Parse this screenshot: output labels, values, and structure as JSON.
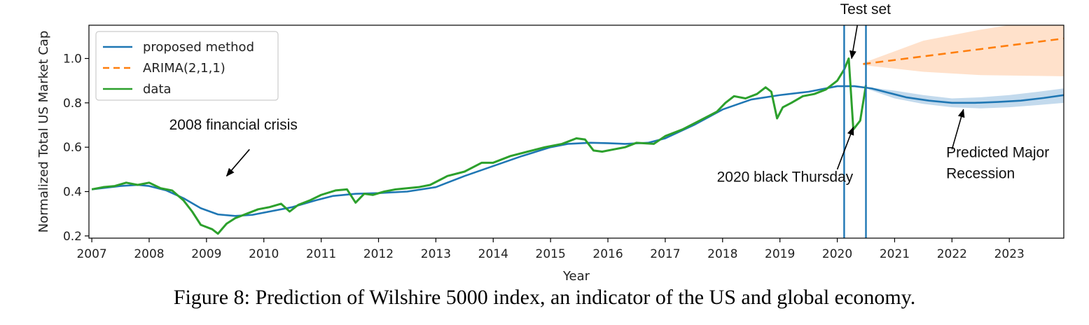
{
  "caption": "Figure 8: Prediction of Wilshire 5000 index, an indicator of the US and global economy.",
  "colors": {
    "proposed": "#1f77b4",
    "arima": "#ff7f0e",
    "data": "#2ca02c",
    "arima_band": "#ffdcc2",
    "proposed_band": "#b8d4ea"
  },
  "chart_data": {
    "type": "line",
    "title": "",
    "xlabel": "Year",
    "ylabel": "Normalized Total US Market Cap",
    "xlim": [
      2006.95,
      2023.95
    ],
    "ylim": [
      0.19,
      1.15
    ],
    "x_ticks": [
      "2007",
      "2008",
      "2009",
      "2010",
      "2011",
      "2012",
      "2013",
      "2014",
      "2015",
      "2016",
      "2017",
      "2018",
      "2019",
      "2020",
      "2021",
      "2022",
      "2023"
    ],
    "y_ticks": [
      "0.2",
      "0.4",
      "0.6",
      "0.8",
      "1.0"
    ],
    "legend_position": "upper-left",
    "test_set_vlines": [
      2020.12,
      2020.5
    ],
    "series": [
      {
        "name": "proposed method",
        "style": "solid",
        "x": [
          2007.0,
          2007.5,
          2007.8,
          2008.0,
          2008.3,
          2008.6,
          2008.9,
          2009.2,
          2009.5,
          2009.8,
          2010.1,
          2010.5,
          2010.9,
          2011.2,
          2011.6,
          2012.0,
          2012.5,
          2013.0,
          2013.5,
          2014.0,
          2014.5,
          2015.0,
          2015.3,
          2015.7,
          2016.0,
          2016.3,
          2016.7,
          2017.0,
          2017.5,
          2018.0,
          2018.5,
          2019.0,
          2019.5,
          2020.0,
          2020.3,
          2020.6,
          2020.9,
          2021.2,
          2021.6,
          2022.0,
          2022.4,
          2022.8,
          2023.2,
          2023.6,
          2023.95
        ],
        "y": [
          0.41,
          0.425,
          0.43,
          0.425,
          0.405,
          0.37,
          0.325,
          0.297,
          0.29,
          0.295,
          0.31,
          0.33,
          0.36,
          0.38,
          0.39,
          0.393,
          0.4,
          0.42,
          0.47,
          0.515,
          0.56,
          0.6,
          0.615,
          0.62,
          0.618,
          0.615,
          0.62,
          0.64,
          0.7,
          0.77,
          0.815,
          0.835,
          0.85,
          0.875,
          0.875,
          0.865,
          0.845,
          0.825,
          0.81,
          0.8,
          0.8,
          0.804,
          0.81,
          0.822,
          0.835
        ]
      },
      {
        "name": "ARIMA(2,1,1)",
        "style": "dashed",
        "x": [
          2020.45,
          2023.95
        ],
        "y": [
          0.975,
          1.09
        ]
      },
      {
        "name": "data",
        "style": "solid",
        "x": [
          2007.0,
          2007.2,
          2007.4,
          2007.6,
          2007.8,
          2008.0,
          2008.2,
          2008.4,
          2008.6,
          2008.75,
          2008.9,
          2009.1,
          2009.2,
          2009.35,
          2009.5,
          2009.7,
          2009.9,
          2010.1,
          2010.3,
          2010.45,
          2010.6,
          2010.8,
          2011.0,
          2011.25,
          2011.45,
          2011.6,
          2011.75,
          2011.9,
          2012.1,
          2012.3,
          2012.5,
          2012.7,
          2012.9,
          2013.2,
          2013.5,
          2013.8,
          2014.0,
          2014.3,
          2014.6,
          2014.9,
          2015.2,
          2015.45,
          2015.6,
          2015.75,
          2015.9,
          2016.1,
          2016.3,
          2016.5,
          2016.8,
          2017.0,
          2017.3,
          2017.6,
          2017.9,
          2018.05,
          2018.2,
          2018.4,
          2018.6,
          2018.75,
          2018.85,
          2018.95,
          2019.05,
          2019.2,
          2019.4,
          2019.6,
          2019.8,
          2020.0,
          2020.12,
          2020.2,
          2020.28,
          2020.4,
          2020.5
        ],
        "y": [
          0.41,
          0.42,
          0.425,
          0.44,
          0.43,
          0.44,
          0.415,
          0.405,
          0.36,
          0.31,
          0.25,
          0.23,
          0.21,
          0.255,
          0.28,
          0.3,
          0.32,
          0.33,
          0.345,
          0.31,
          0.34,
          0.36,
          0.385,
          0.405,
          0.41,
          0.35,
          0.39,
          0.385,
          0.4,
          0.41,
          0.415,
          0.42,
          0.43,
          0.47,
          0.49,
          0.53,
          0.53,
          0.56,
          0.58,
          0.6,
          0.615,
          0.64,
          0.635,
          0.585,
          0.58,
          0.59,
          0.6,
          0.62,
          0.615,
          0.65,
          0.68,
          0.72,
          0.76,
          0.8,
          0.83,
          0.82,
          0.84,
          0.87,
          0.85,
          0.73,
          0.78,
          0.8,
          0.83,
          0.84,
          0.86,
          0.9,
          0.95,
          1.0,
          0.68,
          0.72,
          0.88
        ]
      }
    ],
    "bands": [
      {
        "for": "ARIMA(2,1,1)",
        "x": [
          2020.45,
          2021.5,
          2022.5,
          2023.95
        ],
        "lower": [
          0.97,
          0.94,
          0.925,
          0.92
        ],
        "upper": [
          0.98,
          1.08,
          1.13,
          1.19
        ]
      },
      {
        "for": "proposed method",
        "x": [
          2020.55,
          2021.0,
          2021.5,
          2022.0,
          2022.5,
          2023.0,
          2023.5,
          2023.95
        ],
        "lower": [
          0.86,
          0.82,
          0.795,
          0.78,
          0.775,
          0.78,
          0.79,
          0.8
        ],
        "upper": [
          0.87,
          0.855,
          0.835,
          0.82,
          0.825,
          0.835,
          0.85,
          0.865
        ]
      }
    ],
    "annotations": [
      {
        "id": "crisis",
        "lines": [
          "2008 financial crisis"
        ],
        "text_at": [
          2008.35,
          0.68
        ],
        "arrow_from": [
          2009.75,
          0.59
        ],
        "arrow_to": [
          2009.35,
          0.47
        ]
      },
      {
        "id": "thursday",
        "lines": [
          "2020 black Thursday"
        ],
        "text_at": [
          2017.9,
          0.445
        ],
        "arrow_from": [
          2020.0,
          0.5
        ],
        "arrow_to": [
          2020.28,
          0.69
        ]
      },
      {
        "id": "test",
        "lines": [
          "Test set"
        ],
        "text_at": [
          2020.05,
          1.2
        ],
        "arrow_from": [
          2020.35,
          1.15
        ],
        "arrow_to": [
          2020.25,
          1.0
        ]
      },
      {
        "id": "recession",
        "lines": [
          "Predicted Major",
          "Recession"
        ],
        "text_at": [
          2021.9,
          0.555
        ],
        "arrow_from": [
          2022.0,
          0.59
        ],
        "arrow_to": [
          2022.2,
          0.77
        ]
      }
    ]
  }
}
